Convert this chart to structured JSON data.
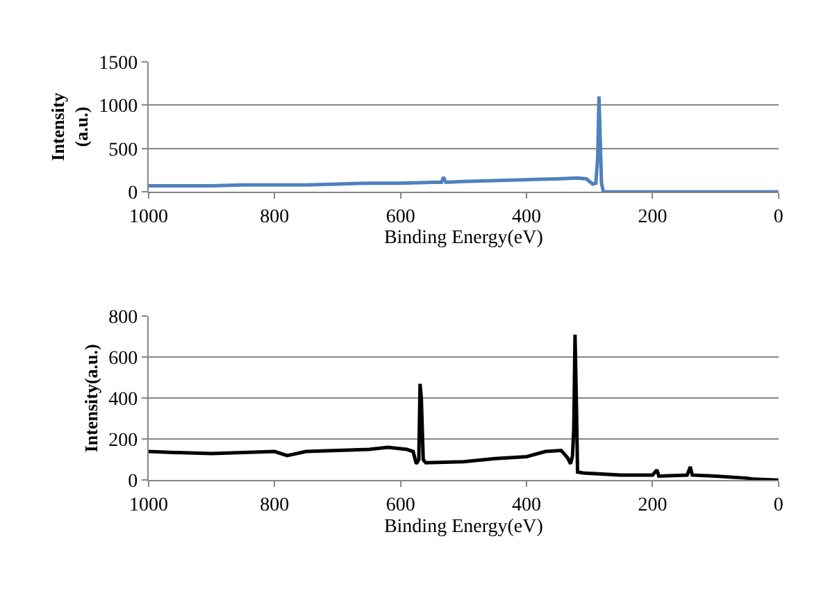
{
  "chart_data": [
    {
      "type": "line",
      "xlabel": "Binding Energy(eV)",
      "ylabel": "Intensity\n(a.u.)",
      "xlim": [
        1000,
        0
      ],
      "xticks": [
        1000,
        800,
        600,
        400,
        200,
        0
      ],
      "ylim": [
        0,
        1500
      ],
      "yticks": [
        0,
        500,
        1000,
        1500
      ],
      "grid": "y",
      "series": [
        {
          "color": "#4f81bd",
          "x": [
            1000,
            950,
            900,
            850,
            800,
            750,
            700,
            650,
            600,
            550,
            535,
            532,
            528,
            500,
            450,
            400,
            350,
            320,
            305,
            295,
            290,
            287,
            285,
            283,
            281,
            278,
            250,
            200,
            100,
            20,
            0
          ],
          "values": [
            70,
            70,
            70,
            80,
            80,
            80,
            90,
            100,
            100,
            110,
            110,
            170,
            110,
            120,
            130,
            140,
            150,
            160,
            150,
            90,
            100,
            400,
            1100,
            600,
            100,
            0,
            0,
            0,
            0,
            0,
            0
          ]
        }
      ]
    },
    {
      "type": "line",
      "xlabel": "Binding Energy(eV)",
      "ylabel": "Intensity(a.u.)",
      "xlim": [
        1000,
        0
      ],
      "xticks": [
        1000,
        800,
        600,
        400,
        200,
        0
      ],
      "ylim": [
        0,
        800
      ],
      "yticks": [
        0,
        200,
        400,
        600,
        800
      ],
      "grid": "y",
      "series": [
        {
          "color": "#000000",
          "x": [
            1000,
            960,
            900,
            850,
            800,
            780,
            750,
            700,
            650,
            620,
            590,
            580,
            575,
            571,
            569,
            567,
            564,
            560,
            500,
            450,
            400,
            370,
            345,
            335,
            330,
            327,
            325,
            323,
            321,
            319,
            310,
            250,
            200,
            193,
            190,
            145,
            140,
            137,
            100,
            50,
            40,
            0
          ],
          "values": [
            140,
            135,
            130,
            135,
            140,
            120,
            140,
            145,
            150,
            160,
            150,
            140,
            80,
            100,
            470,
            400,
            100,
            85,
            90,
            105,
            115,
            140,
            145,
            110,
            80,
            120,
            250,
            710,
            400,
            40,
            35,
            25,
            25,
            50,
            20,
            25,
            65,
            25,
            20,
            10,
            5,
            0
          ]
        }
      ]
    }
  ]
}
